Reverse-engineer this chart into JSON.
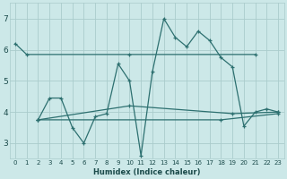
{
  "xlabel": "Humidex (Indice chaleur)",
  "background_color": "#cce8e8",
  "grid_color": "#aacccc",
  "line_color": "#2d7070",
  "x_range": [
    -0.5,
    23.5
  ],
  "y_range": [
    2.5,
    7.5
  ],
  "yticks": [
    3,
    4,
    5,
    6,
    7
  ],
  "xticks": [
    0,
    1,
    2,
    3,
    4,
    5,
    6,
    7,
    8,
    9,
    10,
    11,
    12,
    13,
    14,
    15,
    16,
    17,
    18,
    19,
    20,
    21,
    22,
    23
  ],
  "lines": [
    {
      "x": [
        0,
        1,
        10,
        21
      ],
      "y": [
        6.2,
        5.85,
        5.85,
        5.85
      ]
    },
    {
      "x": [
        2,
        3,
        4,
        5,
        6,
        7,
        8,
        9,
        10,
        11,
        12,
        13,
        14,
        15,
        16,
        17,
        18,
        19,
        20,
        21,
        22,
        23
      ],
      "y": [
        3.75,
        4.45,
        4.45,
        3.5,
        3.0,
        3.85,
        3.95,
        5.55,
        5.0,
        2.6,
        5.3,
        7.0,
        6.4,
        6.1,
        6.6,
        6.3,
        5.75,
        5.45,
        3.55,
        4.0,
        4.1,
        4.0
      ]
    },
    {
      "x": [
        2,
        10,
        19,
        23
      ],
      "y": [
        3.75,
        4.2,
        3.95,
        4.0
      ]
    },
    {
      "x": [
        2,
        18,
        23
      ],
      "y": [
        3.75,
        3.75,
        3.95
      ]
    }
  ]
}
